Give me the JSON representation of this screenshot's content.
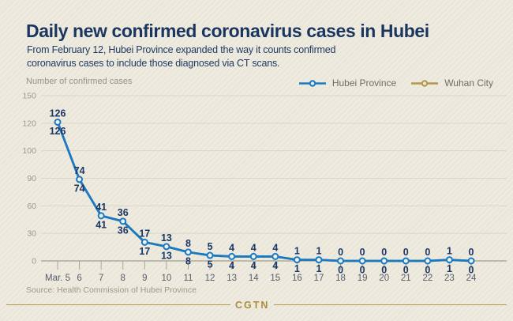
{
  "header": {
    "title": "Daily new confirmed coronavirus cases in Hubei",
    "subtitle_line1": "From February 12, Hubei Province expanded the way it counts confirmed",
    "subtitle_line2": "coronavirus cases to include those diagnosed via CT scans."
  },
  "axis": {
    "title": "Number of confirmed cases"
  },
  "legend": [
    {
      "label": "Hubei Province",
      "color": "#187ac6"
    },
    {
      "label": "Wuhan City",
      "color": "#b2964a"
    }
  ],
  "chart_data": {
    "type": "line",
    "title": "Daily new confirmed coronavirus cases in Hubei",
    "xlabel": "",
    "ylabel": "Number of confirmed cases",
    "x": [
      "Mar. 5",
      "6",
      "7",
      "8",
      "9",
      "10",
      "11",
      "12",
      "13",
      "14",
      "15",
      "16",
      "17",
      "18",
      "19",
      "20",
      "21",
      "22",
      "23",
      "24"
    ],
    "series": [
      {
        "name": "Hubei Province",
        "color": "#187ac6",
        "values": [
          126,
          74,
          41,
          36,
          17,
          13,
          8,
          5,
          4,
          4,
          4,
          1,
          1,
          0,
          0,
          0,
          0,
          0,
          1,
          0
        ]
      },
      {
        "name": "Wuhan City",
        "color": "#b2964a",
        "values": [
          126,
          74,
          41,
          36,
          17,
          13,
          8,
          5,
          4,
          4,
          4,
          1,
          1,
          0,
          0,
          0,
          0,
          0,
          1,
          0
        ]
      }
    ],
    "point_labels": {
      "above": "Hubei Province values",
      "below": "Wuhan City values"
    },
    "y_ticks": [
      150,
      120,
      100,
      90,
      60,
      30,
      0
    ],
    "ylim": [
      0,
      150
    ],
    "grid": "horizontal",
    "legend_position": "top-right"
  },
  "source": "Source: Health Commission of Hubei Province",
  "footer_logo": "CGTN",
  "colors": {
    "background": "#ebe7da",
    "title_navy": "#1a355f",
    "hubei_blue": "#187ac6",
    "wuhan_gold": "#b2964a",
    "value_label": "#1c3767",
    "gridline": "#d9d5c7",
    "zero_axis": "#8f8c7e",
    "y_tick_label": "#9c998c",
    "x_tick_label": "#555d6e"
  }
}
